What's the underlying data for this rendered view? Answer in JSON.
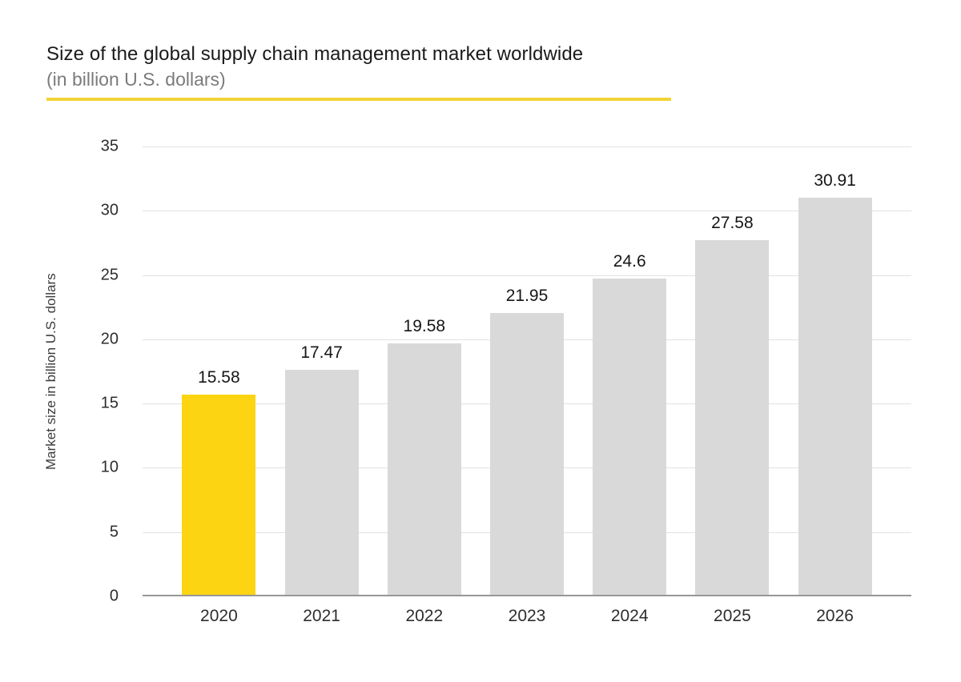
{
  "header": {
    "title": "Size of the global supply chain management market worldwide",
    "subtitle": "(in billion U.S. dollars)"
  },
  "chart_data": {
    "type": "bar",
    "title": "Size of the global supply chain management market worldwide",
    "subtitle": "(in billion U.S. dollars)",
    "categories": [
      "2020",
      "2021",
      "2022",
      "2023",
      "2024",
      "2025",
      "2026"
    ],
    "values": [
      15.58,
      17.47,
      19.58,
      21.95,
      24.6,
      27.58,
      30.91
    ],
    "value_labels": [
      "15.58",
      "17.47",
      "19.58",
      "21.95",
      "24.6",
      "27.58",
      "30.91"
    ],
    "xlabel": "",
    "ylabel": "Market size in billion U.S. dollars",
    "ylim": [
      0,
      35
    ],
    "yticks": [
      0,
      5,
      10,
      15,
      20,
      25,
      30,
      35
    ],
    "grid": true,
    "legend": "none",
    "highlight_index": 0,
    "colors": {
      "highlight_bar": "#fcd411",
      "bar": "#d9d9d9",
      "gridline": "#e2e2e2",
      "axis_line": "#979797",
      "accent_underline": "#f2d336",
      "title_text": "#1a1a1a",
      "subtitle_text": "#7b7b7b",
      "tick_text": "#2e2e2e",
      "value_label_text": "#161616",
      "axis_title_text": "#3c3c3c"
    }
  }
}
